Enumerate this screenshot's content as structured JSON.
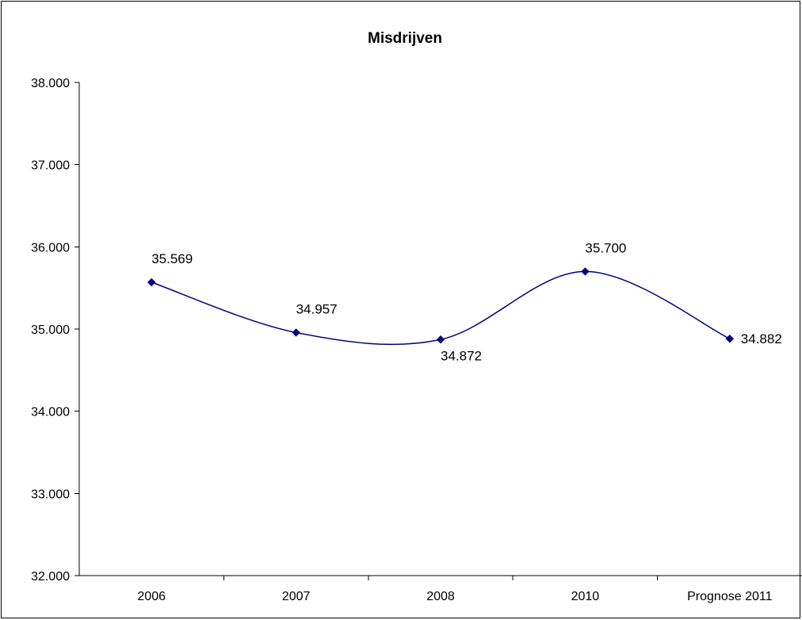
{
  "chart_data": {
    "type": "line",
    "title": "Misdrijven",
    "xlabel": "",
    "ylabel": "",
    "categories": [
      "2006",
      "2007",
      "2008",
      "2010",
      "Prognose 2011"
    ],
    "series": [
      {
        "values": [
          35569,
          34957,
          34872,
          35700,
          34882
        ],
        "labels": [
          "35.569",
          "34.957",
          "34.872",
          "35.700",
          "34.882"
        ],
        "color": "#000080",
        "smoothed": true,
        "marker": "diamond"
      }
    ],
    "ylim": [
      32000,
      38000
    ],
    "yticks": [
      32000,
      33000,
      34000,
      35000,
      36000,
      37000,
      38000
    ],
    "ytick_labels": [
      "32.000",
      "33.000",
      "34.000",
      "35.000",
      "36.000",
      "37.000",
      "38.000"
    ],
    "grid": false,
    "legend": "none"
  }
}
